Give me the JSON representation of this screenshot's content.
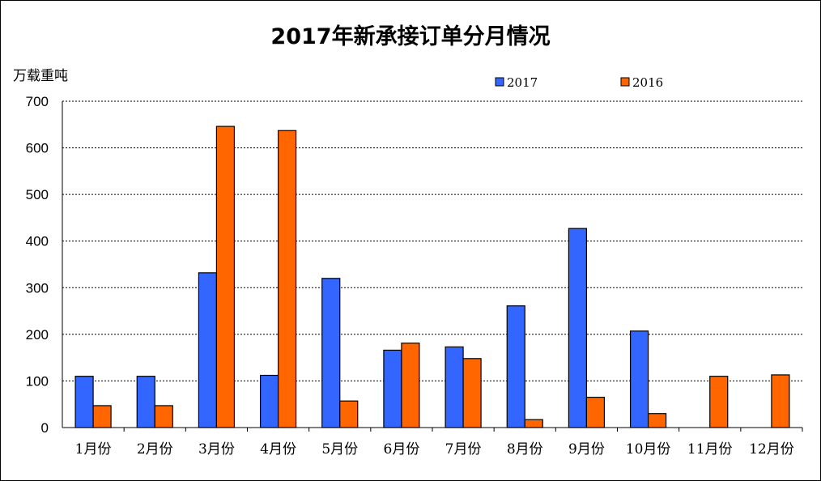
{
  "chart_data": {
    "type": "bar",
    "title": "2017年新承接订单分月情况",
    "ylabel": "万载重吨",
    "xlabel": "",
    "ylim": [
      0,
      700
    ],
    "yticks": [
      0,
      100,
      200,
      300,
      400,
      500,
      600,
      700
    ],
    "grid": true,
    "legend_position": "top-right",
    "categories": [
      "1月份",
      "2月份",
      "3月份",
      "4月份",
      "5月份",
      "6月份",
      "7月份",
      "8月份",
      "9月份",
      "10月份",
      "11月份",
      "12月份"
    ],
    "series": [
      {
        "name": "2017",
        "color": "#3366ff",
        "values": [
          110,
          110,
          332,
          112,
          320,
          166,
          173,
          261,
          427,
          207,
          0,
          0
        ]
      },
      {
        "name": "2016",
        "color": "#ff6600",
        "values": [
          47,
          47,
          646,
          637,
          57,
          181,
          148,
          17,
          65,
          30,
          110,
          113
        ]
      }
    ]
  }
}
